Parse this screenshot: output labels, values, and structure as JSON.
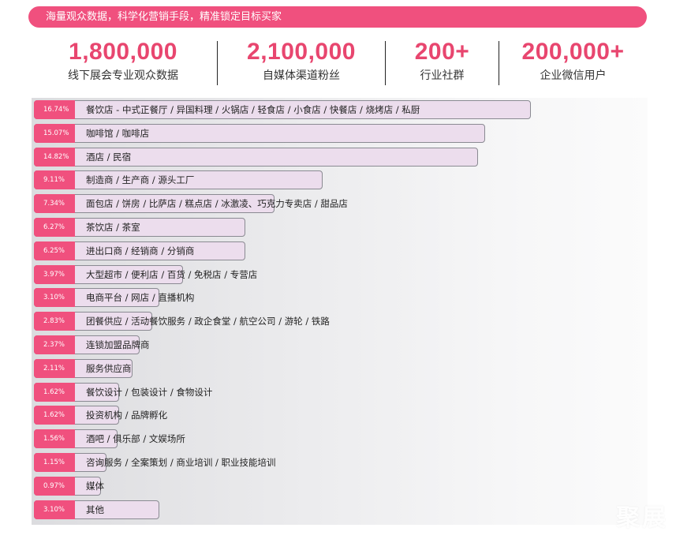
{
  "banner": {
    "text": "海量观众数据，科学化营销手段，精准锁定目标买家"
  },
  "stats": [
    {
      "value": "1,800,000",
      "label": "线下展会专业观众数据"
    },
    {
      "value": "2,100,000",
      "label": "自媒体渠道粉丝"
    },
    {
      "value": "200+",
      "label": "行业社群"
    },
    {
      "value": "200,000+",
      "label": "企业微信用户"
    }
  ],
  "colors": {
    "accent": "#f0507e",
    "bar_fill": "#ecdded",
    "bar_border": "#8a8a92"
  },
  "chart_data": {
    "type": "bar",
    "orientation": "horizontal",
    "categories": [
      "餐饮店 - 中式正餐厅 / 异国料理 / 火锅店 / 轻食店 / 小食店 / 快餐店 / 烧烤店 / 私厨",
      "咖啡馆 / 咖啡店",
      "酒店 / 民宿",
      "制造商 / 生产商 / 源头工厂",
      "面包店 / 饼房 / 比萨店 / 糕点店 / 冰激凌、巧克力专卖店 / 甜品店",
      "茶饮店 / 茶室",
      "进出口商 / 经销商 / 分销商",
      "大型超市 / 便利店 / 百货 / 免税店 / 专营店",
      "电商平台 / 网店 / 直播机构",
      "团餐供应 / 活动餐饮服务 / 政企食堂 / 航空公司 / 游轮 / 铁路",
      "连锁加盟品牌商",
      "服务供应商",
      "餐饮设计 / 包装设计 / 食物设计",
      "投资机构 / 品牌孵化",
      "酒吧 / 俱乐部 / 文娱场所",
      "咨询服务 / 全案策划 / 商业培训 / 职业技能培训",
      "媒体",
      "其他"
    ],
    "labels": [
      "16.74%",
      "15.07%",
      "14.82%",
      "9.11%",
      "7.34%",
      "6.27%",
      "6.25%",
      "3.97%",
      "3.10%",
      "2.83%",
      "2.37%",
      "2.11%",
      "1.62%",
      "1.62%",
      "1.56%",
      "1.15%",
      "0.97%",
      "3.10%"
    ],
    "values": [
      16.74,
      15.07,
      14.82,
      9.11,
      7.34,
      6.27,
      6.25,
      3.97,
      3.1,
      2.83,
      2.37,
      2.11,
      1.62,
      1.62,
      1.56,
      1.15,
      0.97,
      3.1
    ],
    "unit": "%"
  },
  "watermark": "聚展"
}
